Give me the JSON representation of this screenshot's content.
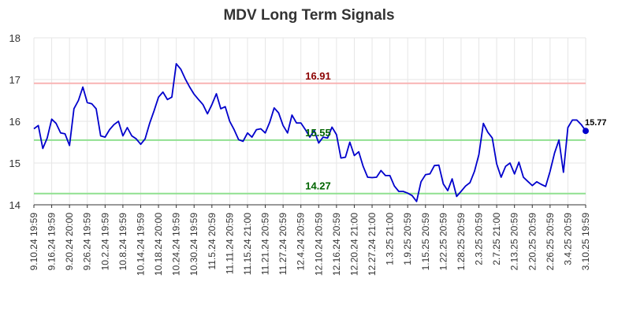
{
  "chart_data": {
    "type": "line",
    "title": "MDV Long Term Signals",
    "xlabel": "",
    "ylabel": "",
    "ylim": [
      14,
      18
    ],
    "yticks": [
      "14",
      "15",
      "16",
      "17",
      "18"
    ],
    "grid": true,
    "x_tick_labels": [
      "9.10.24 19:59",
      "9.16.24 19:59",
      "9.20.24 20:00",
      "9.26.24 19:59",
      "10.2.24 19:59",
      "10.8.24 19:59",
      "10.14.24 19:59",
      "10.18.24 20:00",
      "10.24.24 19:59",
      "10.30.24 19:59",
      "11.5.24 20:59",
      "11.11.24 20:59",
      "11.15.24 21:00",
      "11.21.24 20:59",
      "11.27.24 20:59",
      "12.4.24 20:59",
      "12.10.24 20:59",
      "12.16.24 20:59",
      "12.20.24 21:00",
      "12.27.24 21:00",
      "1.3.25 21:00",
      "1.9.25 20:59",
      "1.15.25 20:59",
      "1.22.25 20:59",
      "1.28.25 20:59",
      "2.3.25 20:59",
      "2.7.25 21:00",
      "2.13.25 20:59",
      "2.20.25 20:59",
      "2.26.25 20:59",
      "3.4.25 20:59",
      "3.10.25 19:59"
    ],
    "series": [
      {
        "color": "#0000cc",
        "values": [
          15.82,
          15.9,
          15.35,
          15.6,
          16.05,
          15.95,
          15.72,
          15.7,
          15.42,
          16.3,
          16.5,
          16.82,
          16.45,
          16.42,
          16.3,
          15.65,
          15.62,
          15.8,
          15.92,
          16.0,
          15.65,
          15.85,
          15.65,
          15.58,
          15.45,
          15.58,
          15.95,
          16.25,
          16.58,
          16.7,
          16.52,
          16.58,
          17.38,
          17.25,
          17.02,
          16.82,
          16.65,
          16.52,
          16.4,
          16.18,
          16.4,
          16.66,
          16.3,
          16.35,
          16.0,
          15.8,
          15.56,
          15.52,
          15.72,
          15.62,
          15.8,
          15.82,
          15.72,
          15.98,
          16.32,
          16.2,
          15.9,
          15.72,
          16.15,
          15.96,
          15.96,
          15.8,
          15.62,
          15.78,
          15.48,
          15.62,
          15.6,
          15.86,
          15.68,
          15.12,
          15.14,
          15.5,
          15.18,
          15.27,
          14.92,
          14.66,
          14.65,
          14.66,
          14.82,
          14.7,
          14.7,
          14.45,
          14.32,
          14.32,
          14.28,
          14.22,
          14.08,
          14.55,
          14.72,
          14.74,
          14.94,
          14.95,
          14.5,
          14.34,
          14.62,
          14.2,
          14.32,
          14.45,
          14.53,
          14.8,
          15.2,
          15.95,
          15.74,
          15.6,
          14.98,
          14.66,
          14.92,
          15.0,
          14.74,
          15.02,
          14.66,
          14.56,
          14.46,
          14.55,
          14.49,
          14.44,
          14.8,
          15.24,
          15.55,
          14.78,
          15.85,
          16.03,
          16.03,
          15.92,
          15.77
        ]
      }
    ],
    "reference_lines": [
      {
        "value": 16.91,
        "label": "16.91",
        "line_color": "#f8b3b3",
        "label_color": "#8b0000"
      },
      {
        "value": 15.55,
        "label": "15.55",
        "line_color": "#90e090",
        "label_color": "#006400"
      },
      {
        "value": 14.27,
        "label": "14.27",
        "line_color": "#90e090",
        "label_color": "#006400"
      }
    ],
    "last_value_label": "15.77"
  }
}
